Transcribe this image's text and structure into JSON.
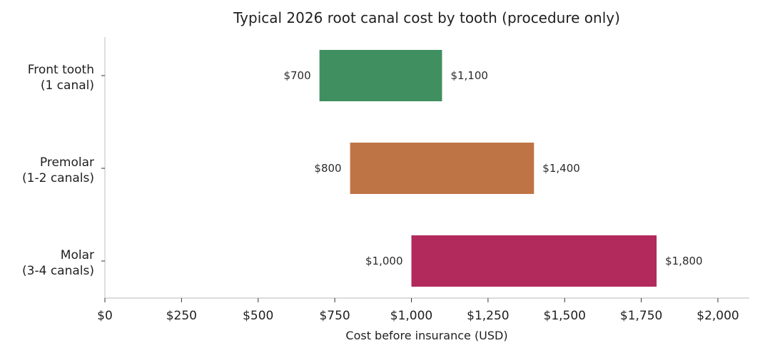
{
  "chart_data": {
    "type": "bar",
    "orientation": "horizontal",
    "subtype": "floating-range",
    "title": "Typical 2026 root canal cost by tooth (procedure only)",
    "xlabel": "Cost before insurance (USD)",
    "ylabel": "",
    "xlim": [
      0,
      2100
    ],
    "x_ticks": [
      0,
      250,
      500,
      750,
      1000,
      1250,
      1500,
      1750,
      2000
    ],
    "x_tick_labels": [
      "$0",
      "$250",
      "$500",
      "$750",
      "$1,000",
      "$1,250",
      "$1,500",
      "$1,750",
      "$2,000"
    ],
    "grid": false,
    "legend": "none",
    "categories": [
      {
        "label_lines": [
          "Front tooth",
          "(1 canal)"
        ],
        "low": 700,
        "high": 1100,
        "low_label": "$700",
        "high_label": "$1,100",
        "color": "#3f8f60"
      },
      {
        "label_lines": [
          "Premolar",
          "(1-2 canals)"
        ],
        "low": 800,
        "high": 1400,
        "low_label": "$800",
        "high_label": "$1,400",
        "color": "#bf7445"
      },
      {
        "label_lines": [
          "Molar",
          "(3-4 canals)"
        ],
        "low": 1000,
        "high": 1800,
        "low_label": "$1,000",
        "high_label": "$1,800",
        "color": "#b22a5c"
      }
    ]
  }
}
